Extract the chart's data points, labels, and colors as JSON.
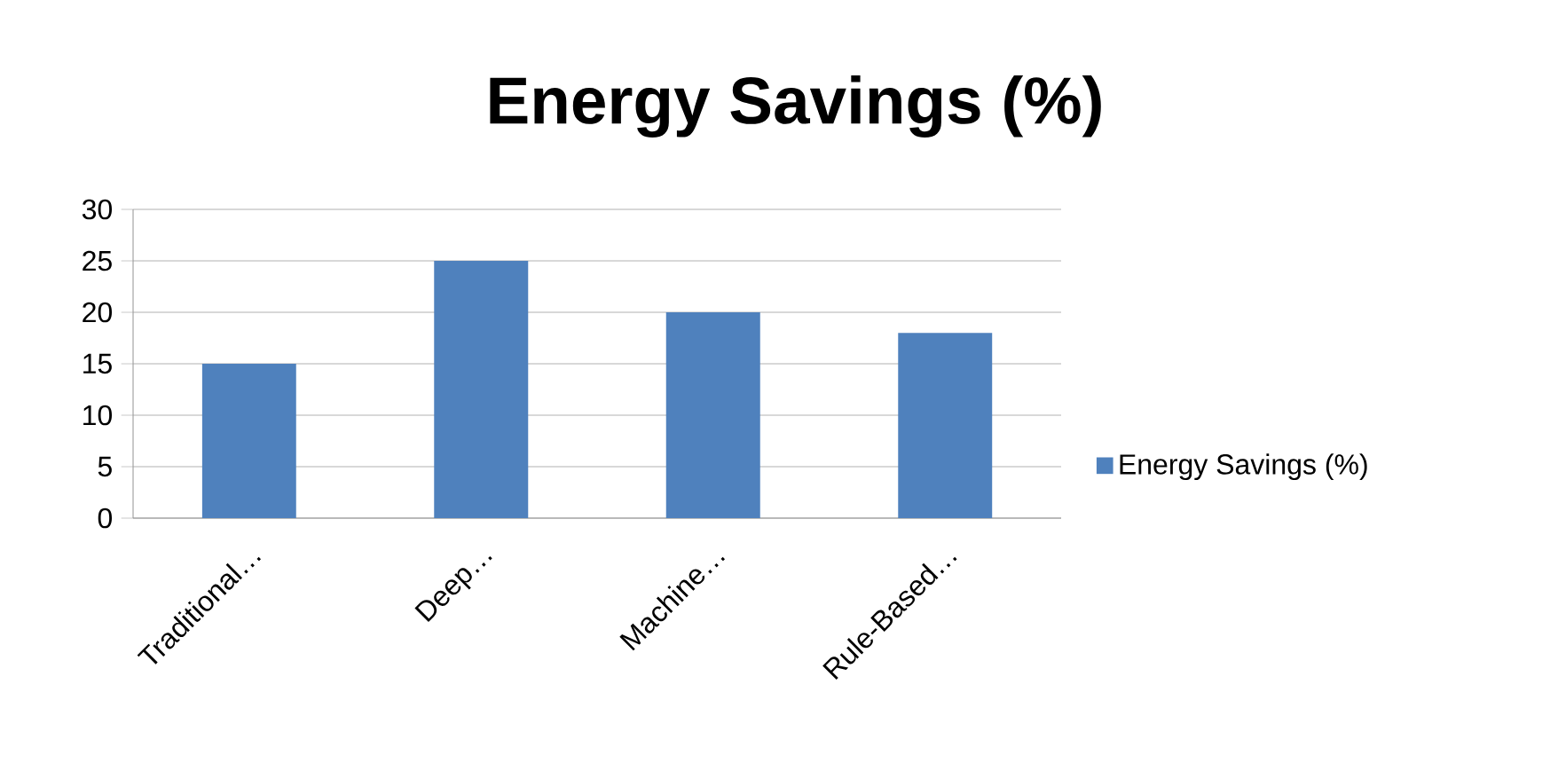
{
  "chart_data": {
    "type": "bar",
    "title": "Energy Savings (%)",
    "categories": [
      "Traditional…",
      "Deep…",
      "Machine…",
      "Rule-Based…"
    ],
    "series": [
      {
        "name": "Energy Savings (%)",
        "color": "#4f81bd",
        "values": [
          15,
          25,
          20,
          18
        ]
      }
    ],
    "ylim": [
      0,
      30
    ],
    "yticks": [
      0,
      5,
      10,
      15,
      20,
      25,
      30
    ],
    "grid": "y",
    "legend": "right"
  }
}
